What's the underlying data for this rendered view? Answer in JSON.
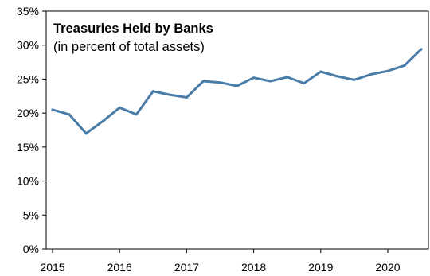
{
  "chart_data": {
    "type": "line",
    "title": "Treasuries Held by Banks",
    "subtitle": "(in percent of total assets)",
    "xlabel": "",
    "ylabel": "",
    "ylim": [
      0,
      35
    ],
    "yticks": [
      0,
      5,
      10,
      15,
      20,
      25,
      30,
      35
    ],
    "ytick_labels": [
      "0%",
      "5%",
      "10%",
      "15%",
      "20%",
      "25%",
      "30%",
      "35%"
    ],
    "xlim": [
      2015,
      2020.6
    ],
    "xticks": [
      2015,
      2016,
      2017,
      2018,
      2019,
      2020
    ],
    "xtick_labels": [
      "2015",
      "2016",
      "2017",
      "2018",
      "2019",
      "2020"
    ],
    "grid": false,
    "color": "#4a7ca8",
    "series": [
      {
        "x": [
          2015.0,
          2015.25,
          2015.5,
          2015.75,
          2016.0,
          2016.25,
          2016.5,
          2016.75,
          2017.0,
          2017.25,
          2017.5,
          2017.75,
          2018.0,
          2018.25,
          2018.5,
          2018.75,
          2019.0,
          2019.25,
          2019.5,
          2019.75,
          2020.0,
          2020.25,
          2020.5
        ],
        "values": [
          20.5,
          19.8,
          17.0,
          18.8,
          20.8,
          19.8,
          23.2,
          22.7,
          22.3,
          24.7,
          24.5,
          24.0,
          25.2,
          24.7,
          25.3,
          24.4,
          26.1,
          25.4,
          24.9,
          25.7,
          26.2,
          27.0,
          29.4
        ]
      }
    ]
  }
}
